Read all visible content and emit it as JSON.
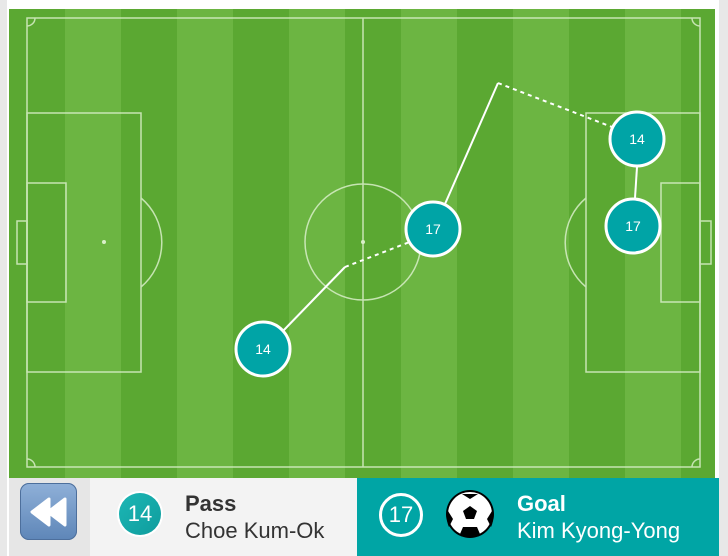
{
  "colors": {
    "pitch_dark": "#5ba832",
    "pitch_light": "#6cb542",
    "marker": "#00a4a6",
    "teal": "#00a5a5"
  },
  "markers": [
    {
      "number": "14",
      "event": "pass-start"
    },
    {
      "number": "17",
      "event": "pass-receive"
    },
    {
      "number": "14",
      "event": "pass"
    },
    {
      "number": "17",
      "event": "shot"
    }
  ],
  "events": {
    "previous": {
      "type": "Pass",
      "player": "Choe Kum-Ok",
      "number": "14"
    },
    "current": {
      "type": "Goal",
      "player": "Kim Kyong-Yong",
      "number": "17",
      "icon": "soccer-ball-icon"
    }
  },
  "controls": {
    "rewind_icon": "rewind-icon"
  }
}
